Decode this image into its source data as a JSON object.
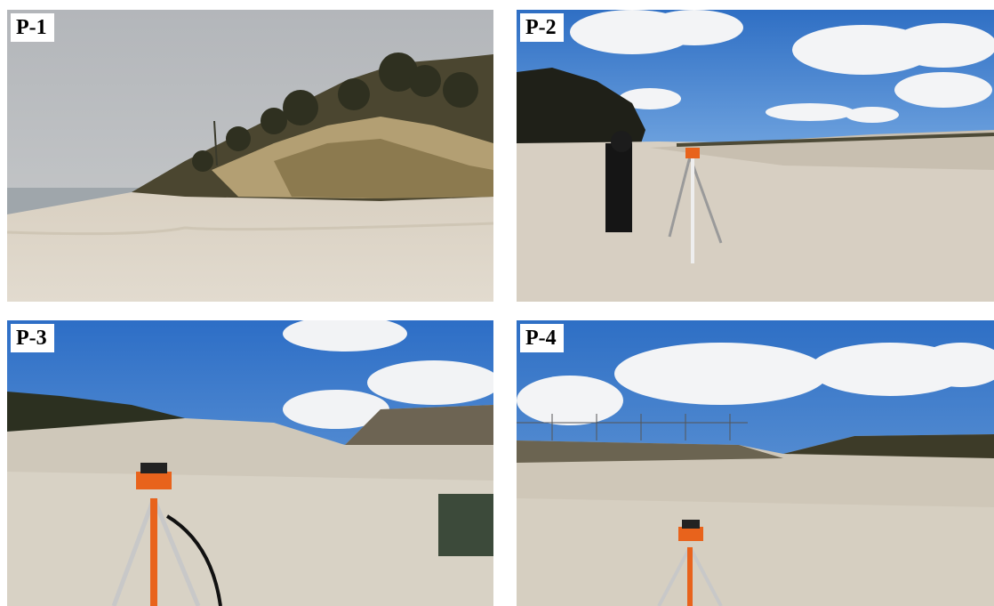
{
  "panels": [
    {
      "label": "P-1"
    },
    {
      "label": "P-2"
    },
    {
      "label": "P-3"
    },
    {
      "label": "P-4"
    }
  ],
  "colors": {
    "overcast_sky": "#b9bdc1",
    "blue_sky": "#3b7fd0",
    "sand": "#d9d2c6",
    "vegetation": "#3d3a25",
    "tripod_orange": "#e8631c"
  }
}
